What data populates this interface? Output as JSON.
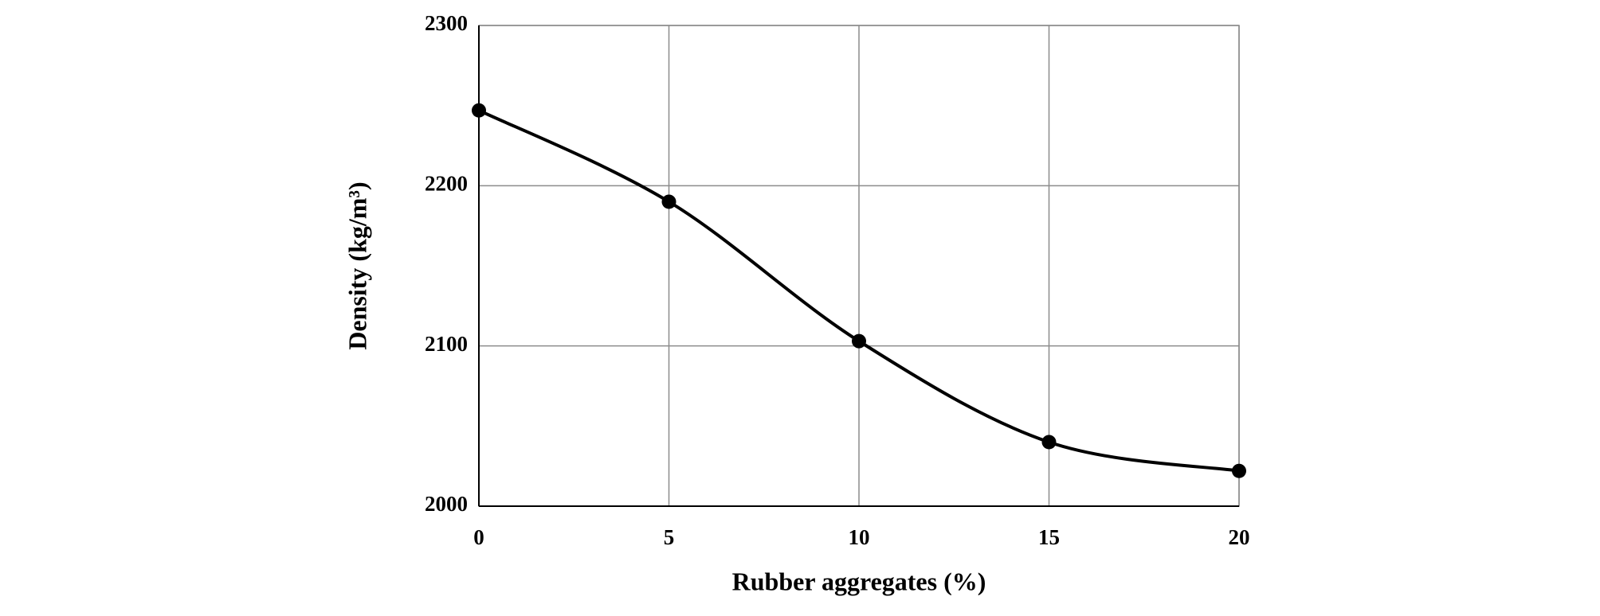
{
  "chart_data": {
    "type": "line",
    "x_label": "Rubber aggregates (%)",
    "y_label": "Density (kg/m³)",
    "x": [
      0,
      5,
      10,
      15,
      20
    ],
    "series": [
      {
        "color": "#000000",
        "values": [
          2247,
          2190,
          2103,
          2040,
          2022
        ]
      }
    ],
    "xlim": [
      0,
      20
    ],
    "xticks": [
      0,
      5,
      10,
      15,
      20
    ],
    "ylim": [
      2000,
      2300
    ],
    "yticks": [
      2000,
      2100,
      2200,
      2300
    ],
    "grid": true,
    "smooth": true
  }
}
